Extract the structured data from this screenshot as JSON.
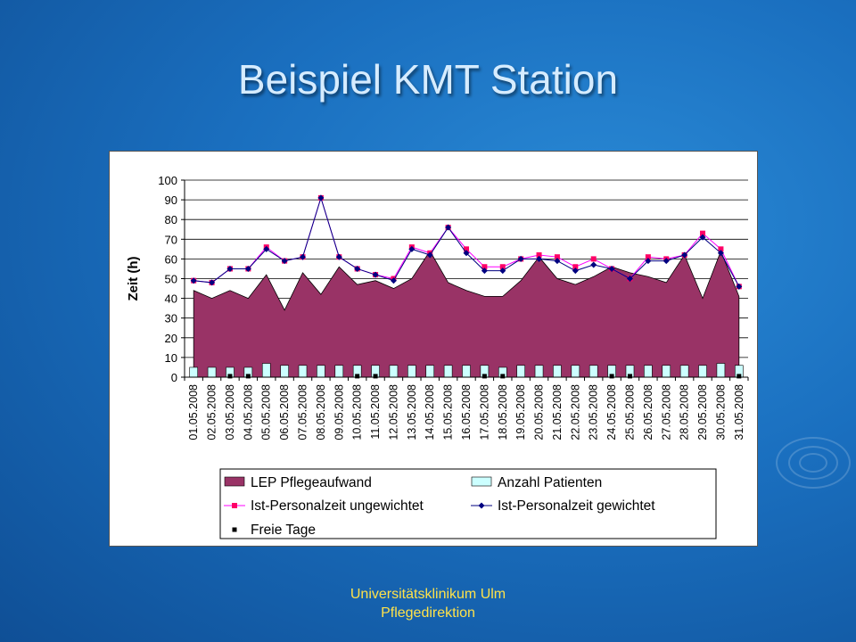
{
  "slide": {
    "title": "Beispiel KMT Station",
    "footer_line1": "Universitätsklinikum Ulm",
    "footer_line2": "Pflegedirektion"
  },
  "colors": {
    "area_fill": "#993366",
    "bar_fill": "#ccffff",
    "ungewichtet_line": "#ff00ff",
    "ungewichtet_marker": "#ff0066",
    "gewichtet_line": "#000080",
    "freie_marker": "#000000"
  },
  "chart_data": {
    "type": "area",
    "ylabel": "Zeit (h)",
    "ylim": [
      0,
      100
    ],
    "yticks": [
      0,
      10,
      20,
      30,
      40,
      50,
      60,
      70,
      80,
      90,
      100
    ],
    "categories": [
      "01.05.2008",
      "02.05.2008",
      "03.05.2008",
      "04.05.2008",
      "05.05.2008",
      "06.05.2008",
      "07.05.2008",
      "08.05.2008",
      "09.05.2008",
      "10.05.2008",
      "11.05.2008",
      "12.05.2008",
      "13.05.2008",
      "14.05.2008",
      "15.05.2008",
      "16.05.2008",
      "17.05.2008",
      "18.05.2008",
      "19.05.2008",
      "20.05.2008",
      "21.05.2008",
      "22.05.2008",
      "23.05.2008",
      "24.05.2008",
      "25.05.2008",
      "26.05.2008",
      "27.05.2008",
      "28.05.2008",
      "29.05.2008",
      "30.05.2008",
      "31.05.2008"
    ],
    "series": [
      {
        "name": "LEP Pflegeaufwand",
        "kind": "area",
        "values": [
          44,
          40,
          44,
          40,
          52,
          34,
          53,
          42,
          56,
          47,
          49,
          45,
          50,
          64,
          48,
          44,
          41,
          41,
          49,
          61,
          50,
          47,
          51,
          56,
          53,
          51,
          48,
          62,
          40,
          64,
          41
        ]
      },
      {
        "name": "Anzahl Patienten",
        "kind": "bar",
        "values": [
          5,
          5,
          5,
          5,
          7,
          6,
          6,
          6,
          6,
          6,
          6,
          6,
          6,
          6,
          6,
          6,
          6,
          5,
          6,
          6,
          6,
          6,
          6,
          6,
          6,
          6,
          6,
          6,
          6,
          7,
          6
        ]
      },
      {
        "name": "Ist-Personalzeit ungewichtet",
        "kind": "line",
        "values": [
          49,
          48,
          55,
          55,
          66,
          59,
          61,
          91,
          61,
          55,
          52,
          50,
          66,
          63,
          76,
          65,
          56,
          56,
          60,
          62,
          61,
          56,
          60,
          55,
          50,
          61,
          60,
          62,
          73,
          65,
          46
        ]
      },
      {
        "name": "Ist-Personalzeit gewichtet",
        "kind": "line",
        "values": [
          49,
          48,
          55,
          55,
          65,
          59,
          61,
          91,
          61,
          55,
          52,
          49,
          65,
          62,
          76,
          63,
          54,
          54,
          60,
          60,
          59,
          54,
          57,
          55,
          50,
          59,
          59,
          62,
          71,
          63,
          46
        ]
      },
      {
        "name": "Freie Tage",
        "kind": "marker",
        "values": [
          null,
          null,
          0.5,
          0.5,
          null,
          null,
          null,
          null,
          null,
          0.5,
          0.5,
          null,
          null,
          null,
          null,
          null,
          0.5,
          0.5,
          null,
          null,
          null,
          null,
          null,
          0.5,
          0.5,
          null,
          null,
          null,
          null,
          null,
          0.5
        ]
      }
    ],
    "legend": "bottom"
  }
}
